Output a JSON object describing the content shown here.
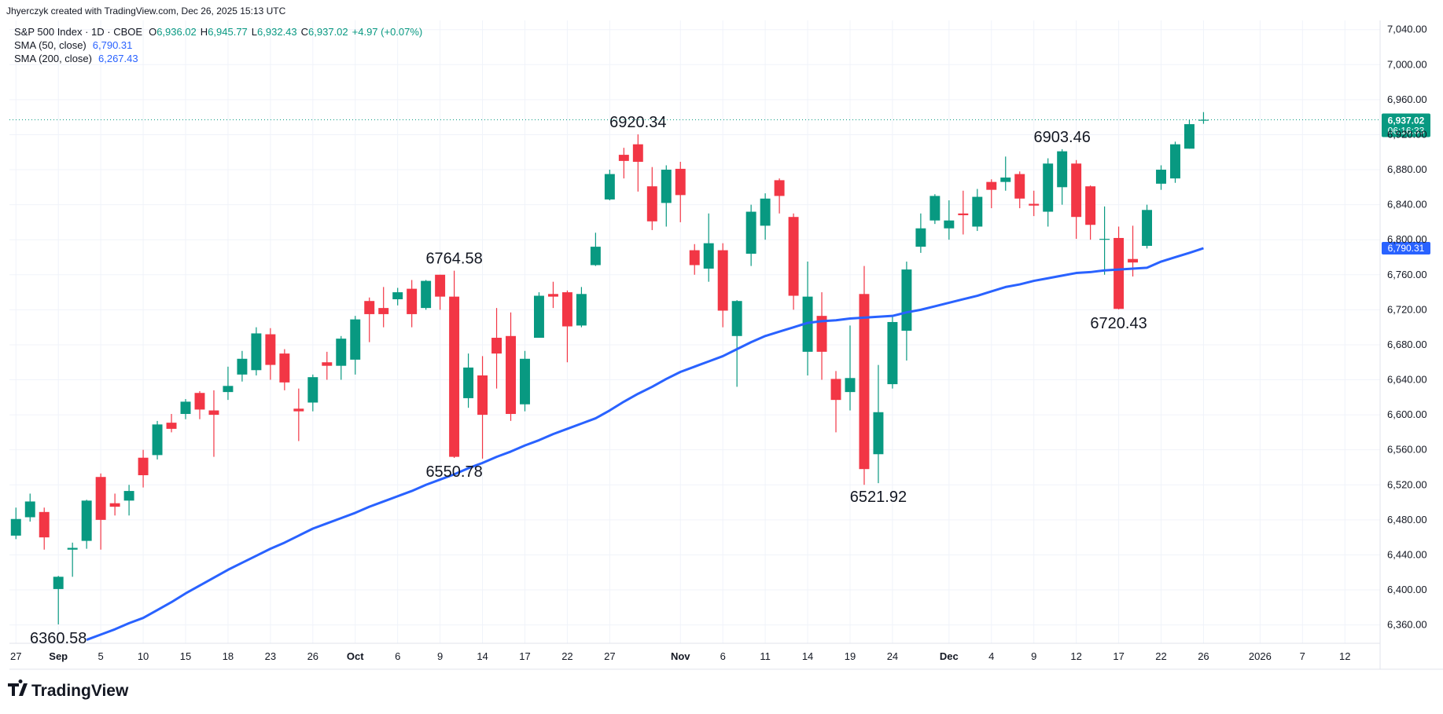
{
  "header": "Jhyerczyk created with TradingView.com, Dec 26, 2025 15:13 UTC",
  "logo": "TradingView",
  "chart_data": {
    "type": "candlestick",
    "symbol": "S&P 500 Index · 1D · CBOE",
    "ohlc_legend": [
      {
        "key": "O",
        "value": "6,936.02"
      },
      {
        "key": "H",
        "value": "6,945.77"
      },
      {
        "key": "L",
        "value": "6,932.43"
      },
      {
        "key": "C",
        "value": "6,937.02"
      }
    ],
    "change_label": "+4.97 (+0.07%)",
    "up_color": "#089981",
    "down_color": "#f23645",
    "last_price_label": "6,937.02",
    "countdown": "06:16:33",
    "open": [
      6462,
      6483,
      6489,
      6401,
      6446,
      6456,
      6529,
      6499,
      6502,
      6551,
      6554,
      6591,
      6601,
      6625,
      6605,
      6626,
      6646,
      6651,
      6692,
      6670,
      6607,
      6614,
      6660,
      6656,
      6663,
      6730,
      6722,
      6732,
      6744,
      6722,
      6760,
      6735,
      6619,
      6645,
      6688,
      6690,
      6612,
      6688,
      6738,
      6740,
      6702,
      6771,
      6846,
      6897,
      6909,
      6861,
      6842,
      6881,
      6788,
      6767,
      6788,
      6690,
      6784,
      6816,
      6868,
      6826,
      6672,
      6713,
      6641,
      6626,
      6738,
      6555,
      6635,
      6696,
      6792,
      6822,
      6813,
      6830,
      6815,
      6866,
      6866,
      6875,
      6841,
      6832,
      6860,
      6887,
      6861,
      6800,
      6802,
      6778,
      6793,
      6864,
      6870,
      6904,
      6936.02
    ],
    "high": [
      6494,
      6510,
      6494,
      6416,
      6454,
      6503,
      6533,
      6510,
      6520,
      6560,
      6593,
      6601,
      6618,
      6627,
      6628,
      6655,
      6673,
      6700,
      6699,
      6675,
      6630,
      6646,
      6672,
      6690,
      6713,
      6734,
      6746,
      6745,
      6754,
      6754,
      6760,
      6764.58,
      6670,
      6667,
      6722,
      6717,
      6673,
      6740,
      6752,
      6742,
      6746,
      6808,
      6880,
      6905,
      6920.34,
      6883,
      6885,
      6889,
      6795,
      6830,
      6796,
      6731,
      6840,
      6853,
      6870,
      6830,
      6775,
      6740,
      6650,
      6702,
      6770,
      6657,
      6712,
      6775,
      6830,
      6852,
      6845,
      6856,
      6858,
      6869,
      6895,
      6878,
      6856,
      6893,
      6903.46,
      6891,
      6862,
      6838,
      6815,
      6816,
      6840,
      6885,
      6912,
      6937,
      6945.77
    ],
    "low": [
      6458,
      6478,
      6446,
      6360.58,
      6415,
      6447,
      6446,
      6485,
      6485,
      6517,
      6549,
      6580,
      6595,
      6595,
      6552,
      6617,
      6638,
      6645,
      6640,
      6628,
      6570,
      6604,
      6640,
      6640,
      6646,
      6683,
      6700,
      6725,
      6700,
      6720,
      6720,
      6550.78,
      6608,
      6550,
      6630,
      6593,
      6604,
      6688,
      6722,
      6660,
      6700,
      6770,
      6845,
      6870,
      6855,
      6811,
      6815,
      6820,
      6760,
      6752,
      6700,
      6632,
      6770,
      6800,
      6830,
      6720,
      6645,
      6640,
      6580,
      6605,
      6520,
      6521.92,
      6630,
      6662,
      6785,
      6818,
      6800,
      6806,
      6810,
      6836,
      6856,
      6836,
      6827,
      6815,
      6840,
      6801,
      6800,
      6760,
      6720.43,
      6758,
      6790,
      6857,
      6865,
      6904,
      6932.43
    ],
    "close": [
      6481,
      6501,
      6460,
      6415,
      6448,
      6502,
      6480,
      6495,
      6513,
      6531,
      6589,
      6584,
      6615,
      6606,
      6600,
      6633,
      6664,
      6693,
      6657,
      6637,
      6604,
      6643,
      6656,
      6687,
      6709,
      6715,
      6715,
      6740,
      6715,
      6753,
      6735,
      6552,
      6654,
      6600,
      6670,
      6601,
      6664,
      6736,
      6735,
      6701,
      6738,
      6792,
      6875,
      6890,
      6889,
      6821,
      6880,
      6851,
      6771,
      6796,
      6719,
      6730,
      6832,
      6847,
      6850,
      6736,
      6735,
      6672,
      6617,
      6642,
      6538,
      6603,
      6706,
      6766,
      6813,
      6850,
      6822,
      6828,
      6849,
      6857,
      6871,
      6847,
      6839,
      6887,
      6901,
      6826,
      6817,
      6801,
      6721,
      6774,
      6834,
      6880,
      6909,
      6932,
      6937.02
    ],
    "series": [
      {
        "name": "SMA (50, close)",
        "value_label": "6,790.31",
        "color": "#2962ff",
        "values": [
          null,
          null,
          null,
          null,
          null,
          6343,
          6349,
          6355,
          6362,
          6368,
          6377,
          6386,
          6396,
          6405,
          6414,
          6423,
          6431,
          6439,
          6447,
          6454,
          6462,
          6470,
          6476,
          6482,
          6488,
          6495,
          6501,
          6507,
          6513,
          6520,
          6526,
          6532,
          6539,
          6545,
          6552,
          6558,
          6565,
          6571,
          6578,
          6584,
          6590,
          6596,
          6605,
          6615,
          6624,
          6632,
          6641,
          6649,
          6655,
          6661,
          6667,
          6675,
          6683,
          6690,
          6695,
          6700,
          6705,
          6707,
          6708,
          6710,
          6711,
          6712,
          6713,
          6717,
          6720,
          6724,
          6728,
          6732,
          6736,
          6741,
          6746,
          6749,
          6753,
          6756,
          6759,
          6762,
          6763,
          6765,
          6766,
          6767,
          6768,
          6775,
          6780,
          6785,
          6790.31
        ]
      },
      {
        "name": "SMA (200, close)",
        "value_label": "6,267.43",
        "color": "#2962ff"
      }
    ],
    "annotations": [
      {
        "text": "6360.58",
        "x": 3,
        "side": "below"
      },
      {
        "text": "6764.58",
        "x": 31,
        "side": "above"
      },
      {
        "text": "6550.78",
        "x": 31,
        "side": "below"
      },
      {
        "text": "6920.34",
        "x": 44,
        "side": "above"
      },
      {
        "text": "6521.92",
        "x": 61,
        "side": "below"
      },
      {
        "text": "6903.46",
        "x": 74,
        "side": "above"
      },
      {
        "text": "6720.43",
        "x": 78,
        "side": "below"
      }
    ],
    "xlim": [
      -0.46,
      96.49
    ],
    "xticks": [
      {
        "value": 0,
        "label": "27"
      },
      {
        "value": 3,
        "label": "Sep"
      },
      {
        "value": 6,
        "label": "5"
      },
      {
        "value": 9,
        "label": "10"
      },
      {
        "value": 12,
        "label": "15"
      },
      {
        "value": 15,
        "label": "18"
      },
      {
        "value": 18,
        "label": "23"
      },
      {
        "value": 21,
        "label": "26"
      },
      {
        "value": 24,
        "label": "Oct"
      },
      {
        "value": 27,
        "label": "6"
      },
      {
        "value": 30,
        "label": "9"
      },
      {
        "value": 33,
        "label": "14"
      },
      {
        "value": 36,
        "label": "17"
      },
      {
        "value": 39,
        "label": "22"
      },
      {
        "value": 42,
        "label": "27"
      },
      {
        "value": 47,
        "label": "Nov"
      },
      {
        "value": 50,
        "label": "6"
      },
      {
        "value": 53,
        "label": "11"
      },
      {
        "value": 56,
        "label": "14"
      },
      {
        "value": 59,
        "label": "19"
      },
      {
        "value": 62,
        "label": "24"
      },
      {
        "value": 66,
        "label": "Dec"
      },
      {
        "value": 69,
        "label": "4"
      },
      {
        "value": 72,
        "label": "9"
      },
      {
        "value": 75,
        "label": "12"
      },
      {
        "value": 78,
        "label": "17"
      },
      {
        "value": 81,
        "label": "22"
      },
      {
        "value": 84,
        "label": "26"
      },
      {
        "value": 88,
        "label": "2026"
      },
      {
        "value": 91,
        "label": "7"
      },
      {
        "value": 94,
        "label": "12"
      }
    ],
    "ylim": [
      6339,
      7050.5
    ],
    "yticks": [
      {
        "value": 6360,
        "label": "6,360.00"
      },
      {
        "value": 6400,
        "label": "6,400.00"
      },
      {
        "value": 6440,
        "label": "6,440.00"
      },
      {
        "value": 6480,
        "label": "6,480.00"
      },
      {
        "value": 6520,
        "label": "6,520.00"
      },
      {
        "value": 6560,
        "label": "6,560.00"
      },
      {
        "value": 6600,
        "label": "6,600.00"
      },
      {
        "value": 6640,
        "label": "6,640.00"
      },
      {
        "value": 6680,
        "label": "6,680.00"
      },
      {
        "value": 6720,
        "label": "6,720.00"
      },
      {
        "value": 6760,
        "label": "6,760.00"
      },
      {
        "value": 6800,
        "label": "6,800.00"
      },
      {
        "value": 6840,
        "label": "6,840.00"
      },
      {
        "value": 6880,
        "label": "6,880.00"
      },
      {
        "value": 6920,
        "label": "6,920.00"
      },
      {
        "value": 6960,
        "label": "6,960.00"
      },
      {
        "value": 7000,
        "label": "7,000.00"
      },
      {
        "value": 7040,
        "label": "7,040.00"
      }
    ],
    "grid": true
  }
}
